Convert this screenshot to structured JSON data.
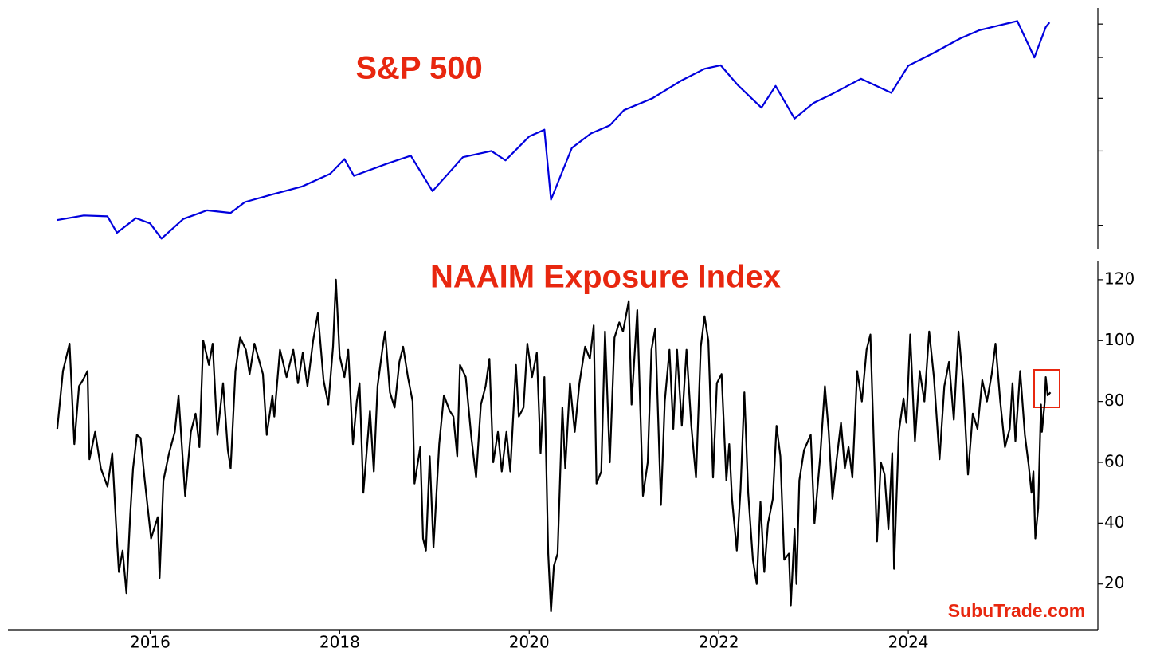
{
  "chart_data": [
    {
      "type": "line",
      "title": "S&P 500",
      "color": "#0000dd",
      "log_scale": true,
      "tick_labels": false,
      "xlim": [
        2014.5,
        2026.0
      ],
      "ylim": [
        1760,
        6550
      ],
      "yticks": [
        2000,
        3000,
        4000,
        5000,
        6000
      ],
      "x": [
        2015.02,
        2015.3,
        2015.55,
        2015.65,
        2015.85,
        2016.0,
        2016.12,
        2016.35,
        2016.6,
        2016.85,
        2017.0,
        2017.3,
        2017.6,
        2017.9,
        2018.05,
        2018.15,
        2018.5,
        2018.75,
        2018.98,
        2019.3,
        2019.6,
        2019.75,
        2020.0,
        2020.16,
        2020.23,
        2020.45,
        2020.65,
        2020.85,
        2021.0,
        2021.3,
        2021.6,
        2021.85,
        2022.02,
        2022.2,
        2022.45,
        2022.6,
        2022.8,
        2023.0,
        2023.2,
        2023.5,
        2023.82,
        2024.0,
        2024.25,
        2024.55,
        2024.75,
        2024.95,
        2025.15,
        2025.33,
        2025.45,
        2025.49
      ],
      "values": [
        2058,
        2110,
        2100,
        1920,
        2080,
        2020,
        1860,
        2070,
        2170,
        2140,
        2270,
        2370,
        2470,
        2650,
        2870,
        2620,
        2800,
        2925,
        2410,
        2900,
        3000,
        2850,
        3250,
        3370,
        2300,
        3050,
        3300,
        3450,
        3750,
        4000,
        4400,
        4700,
        4790,
        4300,
        3800,
        4280,
        3580,
        3900,
        4100,
        4450,
        4120,
        4780,
        5100,
        5550,
        5800,
        5950,
        6100,
        5000,
        5900,
        6050
      ]
    },
    {
      "type": "line",
      "title": "NAAIM Exposure Index",
      "color": "#000000",
      "annotation": "SubuTrade.com",
      "xlim": [
        2014.5,
        2026.0
      ],
      "ylim": [
        5,
        126
      ],
      "yticks": [
        20,
        40,
        60,
        80,
        100,
        120
      ],
      "xticks": [
        2016,
        2018,
        2020,
        2022,
        2024
      ],
      "x": [
        2015.02,
        2015.08,
        2015.15,
        2015.2,
        2015.25,
        2015.29,
        2015.34,
        2015.36,
        2015.42,
        2015.48,
        2015.55,
        2015.6,
        2015.64,
        2015.67,
        2015.71,
        2015.75,
        2015.79,
        2015.82,
        2015.86,
        2015.9,
        2015.94,
        2016.01,
        2016.08,
        2016.1,
        2016.14,
        2016.2,
        2016.26,
        2016.3,
        2016.37,
        2016.43,
        2016.48,
        2016.52,
        2016.56,
        2016.62,
        2016.66,
        2016.71,
        2016.77,
        2016.82,
        2016.85,
        2016.9,
        2016.95,
        2017.01,
        2017.05,
        2017.1,
        2017.19,
        2017.23,
        2017.29,
        2017.31,
        2017.37,
        2017.44,
        2017.51,
        2017.56,
        2017.61,
        2017.66,
        2017.72,
        2017.77,
        2017.83,
        2017.88,
        2017.93,
        2017.96,
        2018.0,
        2018.05,
        2018.09,
        2018.14,
        2018.18,
        2018.21,
        2018.25,
        2018.32,
        2018.36,
        2018.4,
        2018.45,
        2018.48,
        2018.53,
        2018.58,
        2018.63,
        2018.67,
        2018.72,
        2018.77,
        2018.79,
        2018.85,
        2018.88,
        2018.91,
        2018.95,
        2018.99,
        2019.05,
        2019.1,
        2019.16,
        2019.2,
        2019.24,
        2019.27,
        2019.33,
        2019.39,
        2019.44,
        2019.49,
        2019.54,
        2019.58,
        2019.62,
        2019.67,
        2019.71,
        2019.76,
        2019.8,
        2019.86,
        2019.89,
        2019.94,
        2019.98,
        2020.03,
        2020.08,
        2020.12,
        2020.16,
        2020.2,
        2020.23,
        2020.26,
        2020.3,
        2020.35,
        2020.38,
        2020.43,
        2020.48,
        2020.53,
        2020.59,
        2020.64,
        2020.68,
        2020.71,
        2020.76,
        2020.8,
        2020.85,
        2020.9,
        2020.95,
        2020.99,
        2021.05,
        2021.08,
        2021.14,
        2021.2,
        2021.25,
        2021.29,
        2021.33,
        2021.39,
        2021.43,
        2021.48,
        2021.52,
        2021.56,
        2021.61,
        2021.66,
        2021.71,
        2021.76,
        2021.81,
        2021.85,
        2021.89,
        2021.94,
        2021.98,
        2022.03,
        2022.08,
        2022.11,
        2022.14,
        2022.19,
        2022.23,
        2022.27,
        2022.31,
        2022.36,
        2022.4,
        2022.44,
        2022.48,
        2022.52,
        2022.57,
        2022.61,
        2022.65,
        2022.69,
        2022.74,
        2022.76,
        2022.8,
        2022.82,
        2022.85,
        2022.9,
        2022.97,
        2023.01,
        2023.07,
        2023.12,
        2023.16,
        2023.2,
        2023.24,
        2023.29,
        2023.33,
        2023.37,
        2023.41,
        2023.46,
        2023.51,
        2023.56,
        2023.6,
        2023.64,
        2023.67,
        2023.71,
        2023.75,
        2023.79,
        2023.83,
        2023.85,
        2023.9,
        2023.95,
        2023.98,
        2024.02,
        2024.07,
        2024.12,
        2024.17,
        2024.22,
        2024.27,
        2024.33,
        2024.38,
        2024.43,
        2024.48,
        2024.53,
        2024.58,
        2024.63,
        2024.68,
        2024.73,
        2024.78,
        2024.83,
        2024.88,
        2024.92,
        2024.97,
        2025.02,
        2025.07,
        2025.1,
        2025.13,
        2025.18,
        2025.23,
        2025.27,
        2025.3,
        2025.32,
        2025.34,
        2025.37,
        2025.4,
        2025.41,
        2025.44,
        2025.45,
        2025.47,
        2025.5
      ],
      "values": [
        71,
        90,
        99,
        66,
        85,
        87,
        90,
        61,
        70,
        58,
        52,
        63,
        40,
        24,
        31,
        17,
        43,
        58,
        69,
        68,
        55,
        35,
        42,
        22,
        54,
        63,
        70,
        82,
        49,
        70,
        76,
        65,
        100,
        92,
        99,
        69,
        86,
        64,
        58,
        90,
        101,
        97,
        89,
        99,
        89,
        69,
        82,
        75,
        97,
        88,
        97,
        86,
        96,
        85,
        100,
        109,
        87,
        79,
        98,
        120,
        95,
        88,
        97,
        66,
        80,
        86,
        50,
        77,
        57,
        85,
        97,
        103,
        83,
        78,
        93,
        98,
        88,
        80,
        53,
        65,
        35,
        31,
        62,
        32,
        66,
        82,
        77,
        75,
        62,
        92,
        88,
        68,
        55,
        79,
        85,
        94,
        60,
        70,
        57,
        70,
        57,
        92,
        75,
        78,
        99,
        88,
        96,
        63,
        88,
        30,
        11,
        26,
        30,
        78,
        58,
        86,
        70,
        86,
        98,
        94,
        105,
        53,
        57,
        103,
        60,
        101,
        106,
        103,
        113,
        79,
        110,
        49,
        60,
        97,
        104,
        46,
        80,
        97,
        71,
        97,
        72,
        97,
        72,
        55,
        98,
        108,
        100,
        55,
        86,
        89,
        54,
        66,
        48,
        31,
        51,
        83,
        50,
        28,
        20,
        47,
        24,
        40,
        48,
        72,
        62,
        28,
        30,
        13,
        38,
        20,
        54,
        64,
        69,
        40,
        62,
        85,
        70,
        48,
        60,
        73,
        58,
        65,
        55,
        90,
        80,
        97,
        102,
        62,
        34,
        60,
        56,
        38,
        63,
        25,
        70,
        81,
        73,
        102,
        67,
        90,
        80,
        103,
        88,
        61,
        85,
        93,
        74,
        103,
        85,
        56,
        76,
        71,
        87,
        80,
        89,
        99,
        80,
        65,
        71,
        86,
        67,
        90,
        69,
        59,
        50,
        57,
        35,
        45,
        79,
        70,
        80,
        88,
        82,
        83
      ]
    }
  ]
}
